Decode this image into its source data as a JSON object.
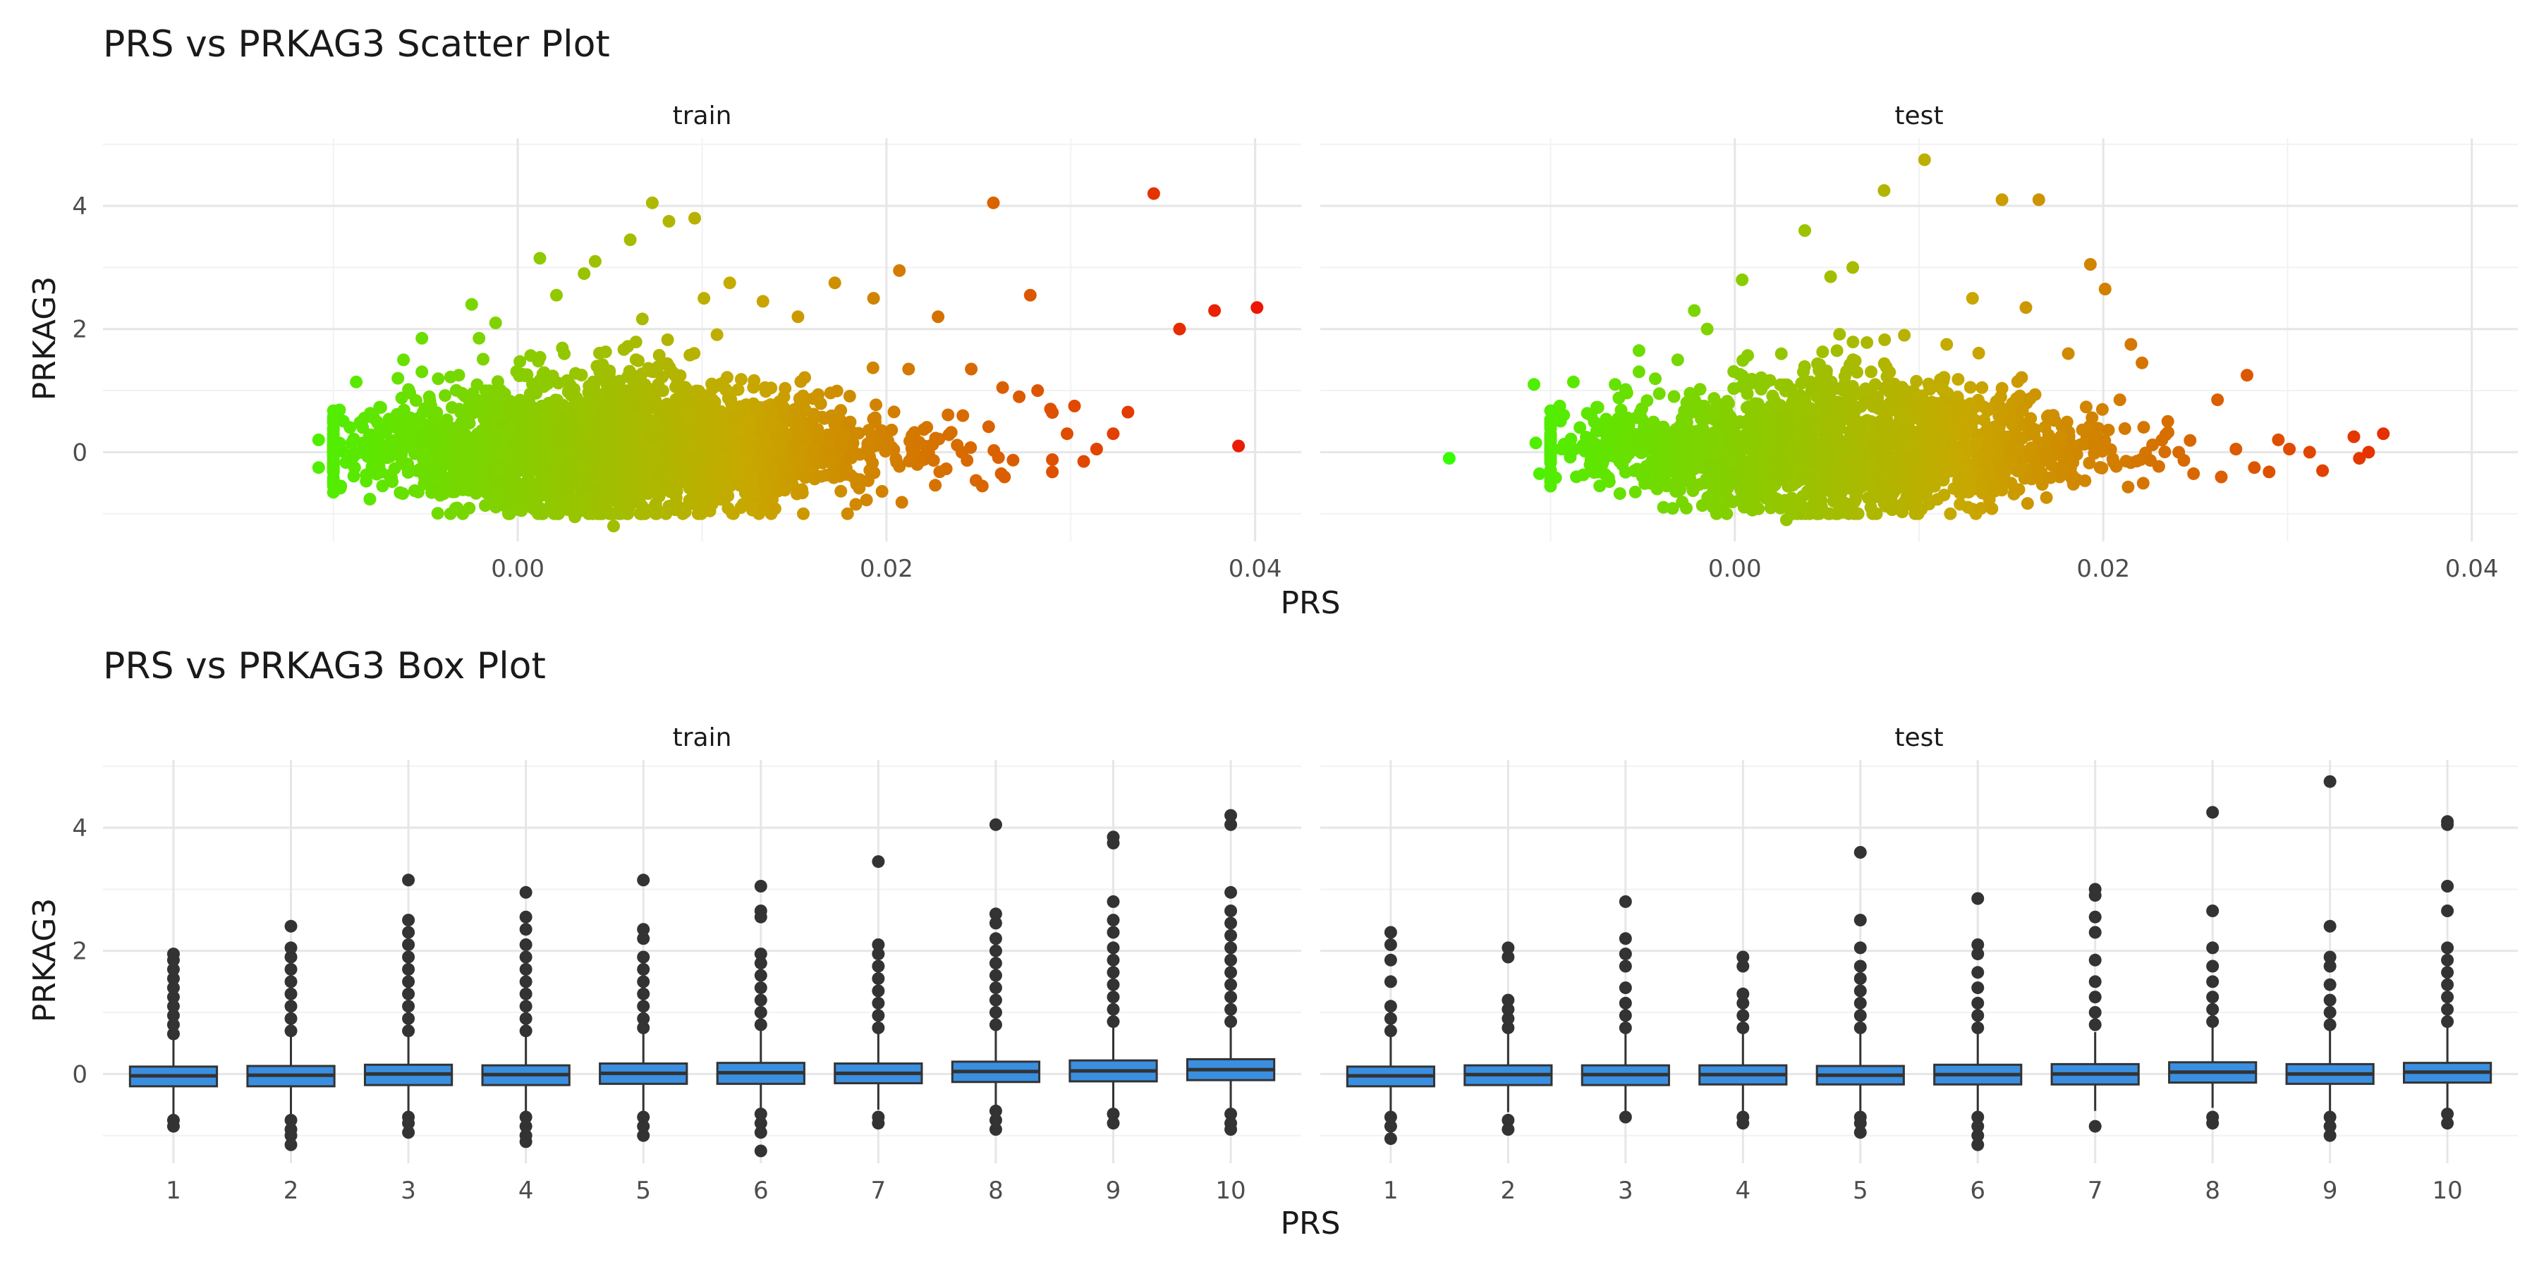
{
  "chart_data": [
    {
      "type": "scatter",
      "title": "PRS vs PRKAG3 Scatter Plot",
      "xlabel": "PRS",
      "ylabel": "PRKAG3",
      "facets": [
        "train",
        "test"
      ],
      "xlim": [
        -0.0225,
        0.0425
      ],
      "ylim": [
        -1.45,
        5.1
      ],
      "x_ticks": [
        0.0,
        0.02,
        0.04
      ],
      "x_tick_labels": [
        "0.00",
        "0.02",
        "0.04"
      ],
      "y_ticks": [
        0,
        2,
        4
      ],
      "y_tick_labels": [
        "0",
        "2",
        "4"
      ],
      "color_scale": {
        "low": "#33ff00",
        "mid": "#c8a800",
        "high": "#ee1100",
        "maps": "PRS"
      },
      "grid": true,
      "series": [
        {
          "facet": "train",
          "points": [
            [
              -0.0108,
              0.2
            ],
            [
              -0.0108,
              -0.25
            ],
            [
              -0.0096,
              -0.55
            ],
            [
              -0.0091,
              0.4
            ],
            [
              -0.0085,
              0.0
            ],
            [
              -0.0078,
              0.55
            ],
            [
              -0.0065,
              1.2
            ],
            [
              -0.0062,
              1.5
            ],
            [
              -0.0052,
              1.85
            ],
            [
              -0.0048,
              0.9
            ],
            [
              -0.0042,
              -0.7
            ],
            [
              -0.0032,
              1.25
            ],
            [
              -0.0025,
              2.4
            ],
            [
              -0.0021,
              1.85
            ],
            [
              -0.0012,
              2.1
            ],
            [
              -0.0005,
              -1.0
            ],
            [
              0.0002,
              -0.95
            ],
            [
              0.0012,
              3.15
            ],
            [
              0.0021,
              2.55
            ],
            [
              0.0031,
              -1.05
            ],
            [
              0.0036,
              2.9
            ],
            [
              0.0042,
              3.1
            ],
            [
              0.0052,
              -1.2
            ],
            [
              0.0061,
              3.45
            ],
            [
              0.0073,
              4.05
            ],
            [
              0.0082,
              3.75
            ],
            [
              0.0096,
              3.8
            ],
            [
              0.0101,
              2.5
            ],
            [
              0.0115,
              2.75
            ],
            [
              0.0121,
              -0.9
            ],
            [
              0.0133,
              2.45
            ],
            [
              0.0152,
              2.2
            ],
            [
              0.0172,
              2.75
            ],
            [
              0.0193,
              2.5
            ],
            [
              0.0207,
              2.95
            ],
            [
              0.0212,
              1.35
            ],
            [
              0.0228,
              2.2
            ],
            [
              0.0246,
              1.35
            ],
            [
              0.0252,
              -0.55
            ],
            [
              0.0258,
              4.05
            ],
            [
              0.0263,
              1.05
            ],
            [
              0.0272,
              0.9
            ],
            [
              0.0278,
              2.55
            ],
            [
              0.0282,
              1.0
            ],
            [
              0.0289,
              0.7
            ],
            [
              0.0298,
              0.3
            ],
            [
              0.0302,
              0.75
            ],
            [
              0.0307,
              -0.15
            ],
            [
              0.0314,
              0.05
            ],
            [
              0.0323,
              0.3
            ],
            [
              0.0331,
              0.65
            ],
            [
              0.0345,
              4.2
            ],
            [
              0.0359,
              2.0
            ],
            [
              0.0378,
              2.3
            ],
            [
              0.0391,
              0.1
            ],
            [
              0.0401,
              2.35
            ]
          ]
        },
        {
          "facet": "test",
          "points": [
            [
              -0.0155,
              -0.1
            ],
            [
              -0.0109,
              1.1
            ],
            [
              -0.0108,
              0.15
            ],
            [
              -0.0106,
              -0.35
            ],
            [
              -0.0095,
              0.75
            ],
            [
              -0.0094,
              0.05
            ],
            [
              -0.0086,
              -0.4
            ],
            [
              -0.0078,
              0.6
            ],
            [
              -0.0065,
              1.1
            ],
            [
              -0.0052,
              1.65
            ],
            [
              -0.0041,
              0.95
            ],
            [
              -0.0031,
              1.5
            ],
            [
              -0.0022,
              2.3
            ],
            [
              -0.0015,
              2.0
            ],
            [
              -0.0008,
              -0.8
            ],
            [
              0.0004,
              2.8
            ],
            [
              0.0012,
              -0.9
            ],
            [
              0.0028,
              -1.1
            ],
            [
              0.0038,
              3.6
            ],
            [
              0.0052,
              2.85
            ],
            [
              0.0064,
              3.0
            ],
            [
              0.0081,
              4.25
            ],
            [
              0.0092,
              1.9
            ],
            [
              0.0103,
              4.75
            ],
            [
              0.0115,
              1.75
            ],
            [
              0.0129,
              2.5
            ],
            [
              0.0145,
              4.1
            ],
            [
              0.0158,
              2.35
            ],
            [
              0.0165,
              4.1
            ],
            [
              0.0181,
              1.6
            ],
            [
              0.0193,
              3.05
            ],
            [
              0.0201,
              2.65
            ],
            [
              0.0209,
              0.85
            ],
            [
              0.0215,
              1.75
            ],
            [
              0.0221,
              1.45
            ],
            [
              0.0235,
              0.5
            ],
            [
              0.0249,
              -0.35
            ],
            [
              0.0262,
              0.85
            ],
            [
              0.0272,
              0.05
            ],
            [
              0.0278,
              1.25
            ],
            [
              0.0282,
              -0.25
            ],
            [
              0.0295,
              0.2
            ],
            [
              0.0301,
              0.05
            ],
            [
              0.0312,
              0.0
            ],
            [
              0.0319,
              -0.3
            ],
            [
              0.0336,
              0.25
            ],
            [
              0.0339,
              -0.1
            ],
            [
              0.0344,
              0.0
            ],
            [
              0.0352,
              0.3
            ]
          ],
          "note_points": "Dense cluster of several thousand points centred near PRS 0.005, PRKAG3 0 in both facets; outlying points listed individually."
        }
      ]
    },
    {
      "type": "box",
      "title": "PRS vs PRKAG3 Box Plot",
      "xlabel": "PRS",
      "ylabel": "PRKAG3",
      "facets": [
        "train",
        "test"
      ],
      "categories": [
        "1",
        "2",
        "3",
        "4",
        "5",
        "6",
        "7",
        "8",
        "9",
        "10"
      ],
      "ylim": [
        -1.45,
        5.1
      ],
      "y_ticks": [
        0,
        2,
        4
      ],
      "y_tick_labels": [
        "0",
        "2",
        "4"
      ],
      "box_fill": "#3a8fe0",
      "grid": true,
      "series": [
        {
          "facet": "train",
          "boxes": [
            {
              "q1": -0.2,
              "median": -0.03,
              "q3": 0.12,
              "whisker_low": -0.65,
              "whisker_high": 0.6,
              "outliers": [
                0.65,
                0.8,
                0.95,
                1.1,
                1.25,
                1.4,
                1.55,
                1.7,
                1.85,
                1.95,
                -0.75,
                -0.85
              ]
            },
            {
              "q1": -0.2,
              "median": -0.02,
              "q3": 0.13,
              "whisker_low": -0.65,
              "whisker_high": 0.62,
              "outliers": [
                0.7,
                0.9,
                1.1,
                1.3,
                1.5,
                1.7,
                1.9,
                2.05,
                2.4,
                -0.75,
                -0.9,
                -1.0,
                -1.15
              ]
            },
            {
              "q1": -0.18,
              "median": 0.0,
              "q3": 0.15,
              "whisker_low": -0.62,
              "whisker_high": 0.65,
              "outliers": [
                0.7,
                0.9,
                1.1,
                1.3,
                1.5,
                1.7,
                1.9,
                2.1,
                2.3,
                2.5,
                3.15,
                -0.7,
                -0.8,
                -0.95
              ]
            },
            {
              "q1": -0.18,
              "median": -0.01,
              "q3": 0.14,
              "whisker_low": -0.63,
              "whisker_high": 0.63,
              "outliers": [
                0.7,
                0.9,
                1.1,
                1.3,
                1.5,
                1.7,
                1.9,
                2.1,
                2.35,
                2.55,
                2.95,
                -0.7,
                -0.85,
                -1.0,
                -1.1
              ]
            },
            {
              "q1": -0.16,
              "median": 0.01,
              "q3": 0.17,
              "whisker_low": -0.62,
              "whisker_high": 0.7,
              "outliers": [
                0.75,
                0.9,
                1.1,
                1.3,
                1.5,
                1.7,
                1.9,
                2.2,
                2.35,
                3.15,
                -0.7,
                -0.85,
                -1.0
              ]
            },
            {
              "q1": -0.16,
              "median": 0.02,
              "q3": 0.18,
              "whisker_low": -0.6,
              "whisker_high": 0.7,
              "outliers": [
                0.8,
                1.0,
                1.2,
                1.4,
                1.6,
                1.8,
                1.95,
                2.55,
                2.65,
                3.05,
                -0.65,
                -0.8,
                -0.95,
                -1.25
              ]
            },
            {
              "q1": -0.15,
              "median": 0.01,
              "q3": 0.17,
              "whisker_low": -0.58,
              "whisker_high": 0.7,
              "outliers": [
                0.75,
                0.95,
                1.15,
                1.35,
                1.55,
                1.75,
                1.95,
                2.1,
                3.45,
                -0.7,
                -0.8
              ]
            },
            {
              "q1": -0.13,
              "median": 0.04,
              "q3": 0.2,
              "whisker_low": -0.55,
              "whisker_high": 0.75,
              "outliers": [
                0.8,
                1.0,
                1.2,
                1.4,
                1.6,
                1.8,
                2.0,
                2.2,
                2.45,
                2.6,
                4.05,
                -0.6,
                -0.75,
                -0.9
              ]
            },
            {
              "q1": -0.12,
              "median": 0.05,
              "q3": 0.22,
              "whisker_low": -0.55,
              "whisker_high": 0.78,
              "outliers": [
                0.85,
                1.05,
                1.25,
                1.45,
                1.65,
                1.85,
                2.05,
                2.3,
                2.5,
                2.8,
                3.75,
                3.85,
                -0.65,
                -0.8
              ]
            },
            {
              "q1": -0.1,
              "median": 0.07,
              "q3": 0.24,
              "whisker_low": -0.55,
              "whisker_high": 0.8,
              "outliers": [
                0.85,
                1.05,
                1.25,
                1.45,
                1.65,
                1.85,
                2.05,
                2.25,
                2.45,
                2.65,
                2.95,
                4.05,
                4.2,
                -0.65,
                -0.8,
                -0.9
              ]
            }
          ]
        },
        {
          "facet": "test",
          "boxes": [
            {
              "q1": -0.2,
              "median": -0.03,
              "q3": 0.12,
              "whisker_low": -0.65,
              "whisker_high": 0.6,
              "outliers": [
                0.7,
                0.9,
                1.1,
                1.5,
                1.85,
                2.1,
                2.3,
                -0.7,
                -0.85,
                -1.05
              ]
            },
            {
              "q1": -0.18,
              "median": -0.01,
              "q3": 0.14,
              "whisker_low": -0.62,
              "whisker_high": 0.65,
              "outliers": [
                0.75,
                0.9,
                1.05,
                1.2,
                1.9,
                2.05,
                -0.75,
                -0.9
              ]
            },
            {
              "q1": -0.18,
              "median": -0.01,
              "q3": 0.14,
              "whisker_low": -0.6,
              "whisker_high": 0.65,
              "outliers": [
                0.75,
                0.95,
                1.15,
                1.4,
                1.75,
                1.95,
                2.2,
                2.8,
                -0.7
              ]
            },
            {
              "q1": -0.17,
              "median": -0.01,
              "q3": 0.14,
              "whisker_low": -0.6,
              "whisker_high": 0.65,
              "outliers": [
                0.75,
                0.95,
                1.15,
                1.3,
                1.75,
                1.9,
                -0.7,
                -0.8
              ]
            },
            {
              "q1": -0.17,
              "median": -0.02,
              "q3": 0.13,
              "whisker_low": -0.6,
              "whisker_high": 0.65,
              "outliers": [
                0.75,
                0.95,
                1.15,
                1.35,
                1.55,
                1.75,
                2.05,
                2.5,
                3.6,
                -0.7,
                -0.8,
                -0.95
              ]
            },
            {
              "q1": -0.17,
              "median": -0.01,
              "q3": 0.15,
              "whisker_low": -0.6,
              "whisker_high": 0.67,
              "outliers": [
                0.75,
                0.95,
                1.15,
                1.4,
                1.65,
                1.95,
                2.1,
                2.85,
                -0.7,
                -0.85,
                -1.0,
                -1.15
              ]
            },
            {
              "q1": -0.17,
              "median": 0.0,
              "q3": 0.16,
              "whisker_low": -0.6,
              "whisker_high": 0.68,
              "outliers": [
                0.8,
                1.0,
                1.25,
                1.5,
                1.85,
                2.3,
                2.55,
                2.9,
                3.0,
                -0.85
              ]
            },
            {
              "q1": -0.14,
              "median": 0.03,
              "q3": 0.19,
              "whisker_low": -0.55,
              "whisker_high": 0.75,
              "outliers": [
                0.85,
                1.05,
                1.25,
                1.5,
                1.75,
                2.05,
                2.65,
                4.25,
                -0.7,
                -0.8
              ]
            },
            {
              "q1": -0.16,
              "median": 0.0,
              "q3": 0.16,
              "whisker_low": -0.6,
              "whisker_high": 0.7,
              "outliers": [
                0.8,
                1.0,
                1.2,
                1.45,
                1.75,
                1.9,
                2.4,
                4.75,
                -0.7,
                -0.85,
                -1.0
              ]
            },
            {
              "q1": -0.14,
              "median": 0.03,
              "q3": 0.18,
              "whisker_low": -0.58,
              "whisker_high": 0.75,
              "outliers": [
                0.85,
                1.05,
                1.25,
                1.45,
                1.65,
                1.85,
                2.05,
                2.65,
                3.05,
                4.05,
                4.1,
                -0.65,
                -0.8
              ]
            }
          ]
        }
      ]
    }
  ]
}
